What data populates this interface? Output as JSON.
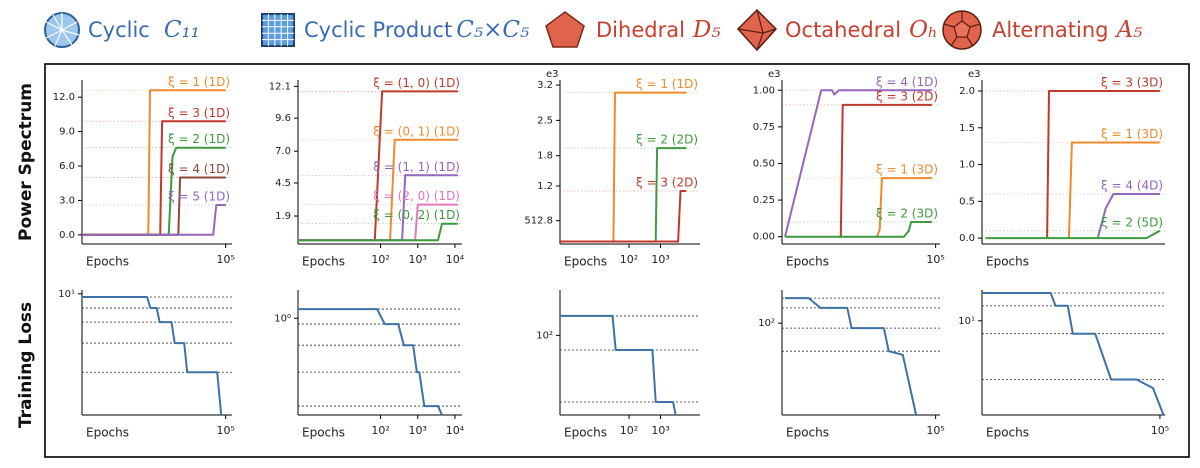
{
  "header": {
    "groups": [
      {
        "name": "Cyclic",
        "symbol": "C₁₁"
      },
      {
        "name": "Cyclic Product",
        "symbol": "C₅×C₅"
      },
      {
        "name": "Dihedral",
        "symbol": "D₅"
      },
      {
        "name": "Octahedral",
        "symbol": "Oₕ"
      },
      {
        "name": "Alternating",
        "symbol": "A₅"
      }
    ]
  },
  "row_labels": [
    "Power Spectrum",
    "Training Loss"
  ],
  "chart_data": [
    {
      "type": "line",
      "log_x": true,
      "xlabel": "Epochs",
      "xlim": [
        10,
        150000
      ],
      "xticks": [
        {
          "value": 100000,
          "label": "10⁵"
        }
      ],
      "ylim": [
        -0.8,
        13.5
      ],
      "yticks": [
        {
          "value": 0,
          "label": "0.0"
        },
        {
          "value": 3,
          "label": "3.0"
        },
        {
          "value": 6,
          "label": "6.0"
        },
        {
          "value": 9,
          "label": "9.0"
        },
        {
          "value": 12,
          "label": "12.0"
        }
      ],
      "series": [
        {
          "name": "ξ = 1 (1D)",
          "color": "#f08a2c",
          "x": [
            10,
            700,
            780,
            100000
          ],
          "values": [
            0,
            0,
            12.6,
            12.6
          ]
        },
        {
          "name": "ξ = 3 (1D)",
          "color": "#c0392b",
          "x": [
            10,
            1500,
            1700,
            100000
          ],
          "values": [
            0,
            0,
            9.9,
            9.9
          ]
        },
        {
          "name": "ξ = 2 (1D)",
          "color": "#3d9a3d",
          "x": [
            10,
            2600,
            3300,
            4200,
            100000
          ],
          "values": [
            0,
            0,
            6.8,
            7.6,
            7.6
          ]
        },
        {
          "name": "ξ = 4 (1D)",
          "color": "#8b4a3a",
          "x": [
            10,
            4800,
            5400,
            100000
          ],
          "values": [
            0,
            0,
            5.0,
            5.0
          ]
        },
        {
          "name": "ξ = 5 (1D)",
          "color": "#9467bd",
          "x": [
            10,
            45000,
            55000,
            100000
          ],
          "values": [
            0,
            0,
            2.6,
            2.6
          ]
        }
      ]
    },
    {
      "type": "line",
      "log_x": true,
      "xlabel": "Epochs",
      "xlim": [
        0.6,
        15500
      ],
      "xticks": [
        {
          "value": 100,
          "label": "10²"
        },
        {
          "value": 1000,
          "label": "10³"
        },
        {
          "value": 10000,
          "label": "10⁴"
        }
      ],
      "ylim": [
        -0.3,
        12.6
      ],
      "yticks": [
        1.9,
        4.5,
        {
          "value": 7,
          "label": "7.0"
        },
        9.6,
        12.1
      ],
      "series": [
        {
          "name": "ξ = (1, 0) (1D)",
          "color": "#c0392b",
          "x": [
            0.6,
            70,
            110,
            12000
          ],
          "values": [
            0,
            0,
            11.7,
            11.7
          ]
        },
        {
          "name": "ξ = (0, 1) (1D)",
          "color": "#f08a2c",
          "x": [
            0.6,
            180,
            240,
            12000
          ],
          "values": [
            0,
            0,
            7.9,
            7.9
          ]
        },
        {
          "name": "ξ = (1, 1) (1D)",
          "color": "#9467bd",
          "x": [
            0.6,
            380,
            460,
            12000
          ],
          "values": [
            0,
            0,
            5.1,
            5.1
          ]
        },
        {
          "name": "ξ = (2, 0) (1D)",
          "color": "#e377c2",
          "x": [
            0.6,
            850,
            1000,
            12000
          ],
          "values": [
            0,
            0,
            2.8,
            2.8
          ]
        },
        {
          "name": "ξ = (0, 2) (1D)",
          "color": "#3d9a3d",
          "x": [
            0.6,
            3500,
            4500,
            12000
          ],
          "values": [
            0,
            0,
            1.3,
            1.3
          ]
        }
      ]
    },
    {
      "type": "line",
      "log_x": true,
      "xlabel": "Epochs",
      "xlim": [
        0.65,
        17800
      ],
      "xticks": [
        {
          "value": 100,
          "label": "10²"
        },
        {
          "value": 1000,
          "label": "10³"
        }
      ],
      "ylim": [
        0.05,
        3.3
      ],
      "yticks": [
        {
          "value": 0.5128,
          "label": "512.8"
        },
        1.2,
        1.8,
        2.5,
        3.2
      ],
      "offset_label": "e3",
      "series": [
        {
          "name": "ξ = 1 (1D)",
          "color": "#f08a2c",
          "x": [
            0.65,
            32,
            36,
            6500
          ],
          "values": [
            0.1,
            0.1,
            3.05,
            3.05
          ]
        },
        {
          "name": "ξ = 2 (2D)",
          "color": "#3d9a3d",
          "x": [
            0.65,
            700,
            780,
            6500
          ],
          "values": [
            0.1,
            0.1,
            1.95,
            1.95
          ]
        },
        {
          "name": "ξ = 3 (2D)",
          "color": "#c0392b",
          "x": [
            0.65,
            3600,
            4300,
            6500
          ],
          "values": [
            0.1,
            0.1,
            1.1,
            1.1
          ]
        }
      ]
    },
    {
      "type": "line",
      "log_x": true,
      "xlabel": "Epochs",
      "xlim": [
        10,
        130000
      ],
      "xticks": [
        {
          "value": 100000,
          "label": "10⁵"
        }
      ],
      "ylim": [
        -0.05,
        1.07
      ],
      "yticks": [
        {
          "value": 0,
          "label": "0.00"
        },
        {
          "value": 0.25,
          "label": "0.25"
        },
        {
          "value": 0.5,
          "label": "0.50"
        },
        {
          "value": 0.75,
          "label": "0.75"
        },
        {
          "value": 1,
          "label": "1.00"
        }
      ],
      "offset_label": "e3",
      "series": [
        {
          "name": "ξ = 4 (1D)",
          "color": "#9467bd",
          "x": [
            12,
            105,
            200,
            230,
            300,
            80000
          ],
          "values": [
            0,
            1.0,
            1.0,
            0.97,
            1.0,
            1.0
          ]
        },
        {
          "name": "ξ = 3 (2D)",
          "color": "#c0392b",
          "x": [
            300,
            340,
            380,
            80000
          ],
          "values": [
            0,
            0,
            0.9,
            0.9
          ]
        },
        {
          "name": "ξ = 1 (3D)",
          "color": "#f08a2c",
          "x": [
            3000,
            3500,
            4000,
            80000
          ],
          "values": [
            0,
            0.05,
            0.4,
            0.4
          ]
        },
        {
          "name": "ξ = 2 (3D)",
          "color": "#3d9a3d",
          "x": [
            12,
            15000,
            20000,
            23000,
            80000
          ],
          "values": [
            0,
            0,
            0.04,
            0.1,
            0.1
          ]
        }
      ]
    },
    {
      "type": "line",
      "log_x": true,
      "xlabel": "Epochs",
      "xlim": [
        10,
        130000
      ],
      "ylim": [
        -0.08,
        2.15
      ],
      "yticks": [
        {
          "value": 0,
          "label": "0.0"
        },
        {
          "value": 0.5,
          "label": "0.5"
        },
        {
          "value": 1,
          "label": "1.0"
        },
        {
          "value": 1.5,
          "label": "1.5"
        },
        {
          "value": 2,
          "label": "2.0"
        }
      ],
      "offset_label": "e3",
      "series": [
        {
          "name": "ξ = 3 (3D)",
          "color": "#c0392b",
          "x": [
            290,
            320,
            100000
          ],
          "values": [
            0,
            2.0,
            2.0
          ]
        },
        {
          "name": "ξ = 1 (3D)",
          "color": "#f08a2c",
          "x": [
            900,
            1050,
            100000
          ],
          "values": [
            0,
            1.3,
            1.3
          ]
        },
        {
          "name": "ξ = 4 (4D)",
          "color": "#9467bd",
          "x": [
            4000,
            6000,
            9000,
            100000
          ],
          "values": [
            0,
            0.4,
            0.6,
            0.6
          ]
        },
        {
          "name": "ξ = 2 (5D)",
          "color": "#3d9a3d",
          "x": [
            12,
            50000,
            100000
          ],
          "values": [
            0,
            0,
            0.1
          ]
        }
      ]
    },
    {
      "type": "line",
      "log_x": true,
      "log_y": true,
      "xlabel": "Epochs",
      "xlim": [
        10,
        150000
      ],
      "xticks": [
        {
          "value": 100000,
          "label": "10⁵"
        }
      ],
      "ylim": [
        0.5,
        11
      ],
      "yticks": [
        {
          "value": 10,
          "label": "10¹"
        }
      ],
      "levels": [
        9.25,
        7.04,
        4.97,
        2.96,
        1.44
      ],
      "series": [
        {
          "color": "#3d72a8",
          "x": [
            10,
            650,
            800,
            1200,
            1450,
            3100,
            3800,
            7000,
            8500,
            58000,
            75000
          ],
          "values": [
            9.25,
            9.25,
            7.04,
            7.04,
            4.97,
            4.97,
            2.96,
            2.96,
            1.44,
            1.44,
            0.5
          ]
        }
      ]
    },
    {
      "type": "line",
      "log_x": true,
      "log_y": true,
      "xlabel": "Epochs",
      "xlim": [
        0.6,
        15500
      ],
      "xticks": [
        {
          "value": 100,
          "label": "10²"
        },
        {
          "value": 1000,
          "label": "10³"
        },
        {
          "value": 10000,
          "label": "10⁴"
        }
      ],
      "ylim": [
        0.2,
        1.6
      ],
      "yticks": [
        {
          "value": 1,
          "label": "10⁰"
        }
      ],
      "levels": [
        1.165,
        0.908,
        0.639,
        0.408,
        0.232
      ],
      "series": [
        {
          "color": "#3d72a8",
          "x": [
            0.6,
            80,
            130,
            300,
            420,
            750,
            950,
            1100,
            1500,
            3500,
            4500
          ],
          "values": [
            1.165,
            1.165,
            0.908,
            0.908,
            0.639,
            0.639,
            0.408,
            0.408,
            0.232,
            0.232,
            0.2
          ]
        }
      ]
    },
    {
      "type": "line",
      "log_x": true,
      "log_y": true,
      "xlabel": "Epochs",
      "xlim": [
        0.65,
        17800
      ],
      "xticks": [
        {
          "value": 100,
          "label": "10²"
        },
        {
          "value": 1000,
          "label": "10³"
        }
      ],
      "ylim": [
        20,
        250
      ],
      "yticks": [
        {
          "value": 100,
          "label": "10²"
        }
      ],
      "levels": [
        148,
        74.4,
        26
      ],
      "series": [
        {
          "color": "#3d72a8",
          "x": [
            0.65,
            30,
            38,
            550,
            700,
            2500,
            3000
          ],
          "values": [
            148,
            148,
            74.4,
            74.4,
            26,
            26,
            20
          ]
        }
      ]
    },
    {
      "type": "line",
      "log_x": true,
      "log_y": true,
      "xlabel": "Epochs",
      "xlim": [
        10,
        130000
      ],
      "xticks": [
        {
          "value": 100000,
          "label": "10⁵"
        }
      ],
      "ylim": [
        25,
        165
      ],
      "yticks": [
        {
          "value": 100,
          "label": "10²"
        }
      ],
      "levels": [
        146,
        126,
        92.8,
        65.5
      ],
      "series": [
        {
          "color": "#3d72a8",
          "x": [
            12,
            50,
            100,
            500,
            650,
            4500,
            6000,
            14000,
            31000
          ],
          "values": [
            146,
            146,
            126,
            126,
            92.8,
            92.8,
            65.5,
            62,
            25
          ]
        }
      ]
    },
    {
      "type": "line",
      "log_x": true,
      "log_y": true,
      "xlabel": "Epochs",
      "xlim": [
        10,
        130000
      ],
      "xticks": [
        {
          "value": 100000,
          "label": "10⁵"
        }
      ],
      "ylim": [
        1.2,
        20
      ],
      "yticks": [
        {
          "value": 10,
          "label": "10¹"
        }
      ],
      "levels": [
        18.7,
        14,
        7.48,
        2.67
      ],
      "series": [
        {
          "color": "#3d72a8",
          "x": [
            10,
            350,
            450,
            850,
            1100,
            3500,
            8000,
            30000,
            70000,
            120000
          ],
          "values": [
            18.7,
            18.7,
            14,
            14,
            7.48,
            7.48,
            2.67,
            2.67,
            2.2,
            1.2
          ]
        }
      ]
    }
  ]
}
